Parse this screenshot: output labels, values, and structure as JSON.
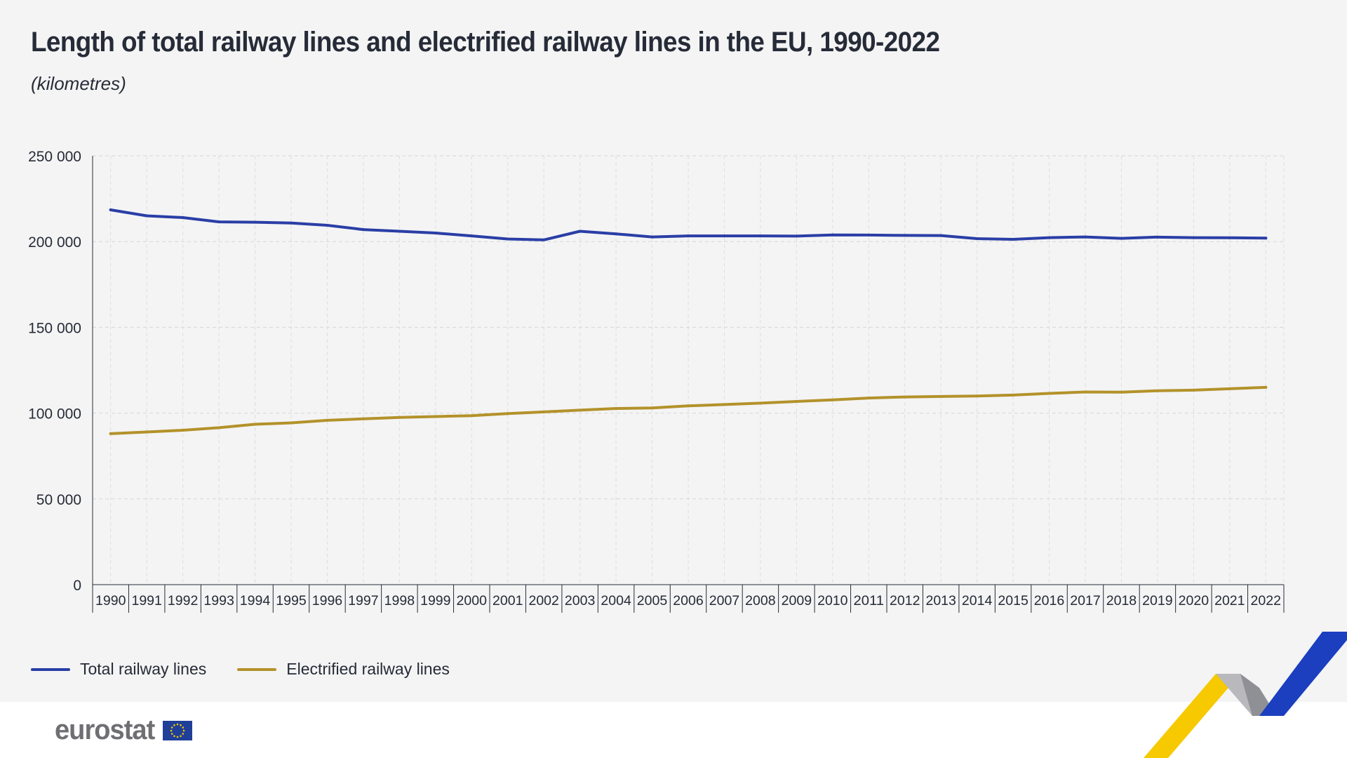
{
  "header": {
    "title": "Length of total railway lines and electrified railway lines in the EU, 1990-2022",
    "subtitle": "(kilometres)"
  },
  "legend": {
    "total_label": "Total railway lines",
    "electrified_label": "Electrified railway lines"
  },
  "brand": {
    "logo_text": "eurostat"
  },
  "colors": {
    "total": "#2a3ea6",
    "electrified": "#b3922a",
    "deco_yellow": "#f7c900",
    "deco_blue": "#1b3fbf"
  },
  "chart_data": {
    "type": "line",
    "title": "Length of total railway lines and electrified railway lines in the EU, 1990-2022",
    "subtitle": "(kilometres)",
    "ylim": [
      0,
      250000
    ],
    "yticks": [
      0,
      50000,
      100000,
      150000,
      200000,
      250000
    ],
    "ytick_labels": [
      "0",
      "50 000",
      "100 000",
      "150 000",
      "200 000",
      "250 000"
    ],
    "grid": true,
    "legend_position": "bottom-left",
    "x": [
      "1990",
      "1991",
      "1992",
      "1993",
      "1994",
      "1995",
      "1996",
      "1997",
      "1998",
      "1999",
      "2000",
      "2001",
      "2002",
      "2003",
      "2004",
      "2005",
      "2006",
      "2007",
      "2008",
      "2009",
      "2010",
      "2011",
      "2012",
      "2013",
      "2014",
      "2015",
      "2016",
      "2017",
      "2018",
      "2019",
      "2020",
      "2021",
      "2022"
    ],
    "series": [
      {
        "name": "Total railway lines",
        "values": [
          218500,
          215000,
          214000,
          211500,
          211300,
          210800,
          209500,
          207000,
          206000,
          205000,
          203300,
          201500,
          201000,
          206000,
          204500,
          202700,
          203300,
          203300,
          203300,
          203200,
          203900,
          203800,
          203600,
          203500,
          201700,
          201300,
          202300,
          202700,
          201900,
          202600,
          202300,
          202200,
          202000
        ]
      },
      {
        "name": "Electrified railway lines",
        "values": [
          88000,
          89000,
          90000,
          91500,
          93500,
          94300,
          95800,
          96700,
          97500,
          98000,
          98500,
          99700,
          100700,
          101700,
          102700,
          103000,
          104200,
          105000,
          105800,
          106800,
          107700,
          108800,
          109400,
          109700,
          110000,
          110500,
          111500,
          112300,
          112200,
          113000,
          113400,
          114200,
          115000
        ]
      }
    ]
  }
}
